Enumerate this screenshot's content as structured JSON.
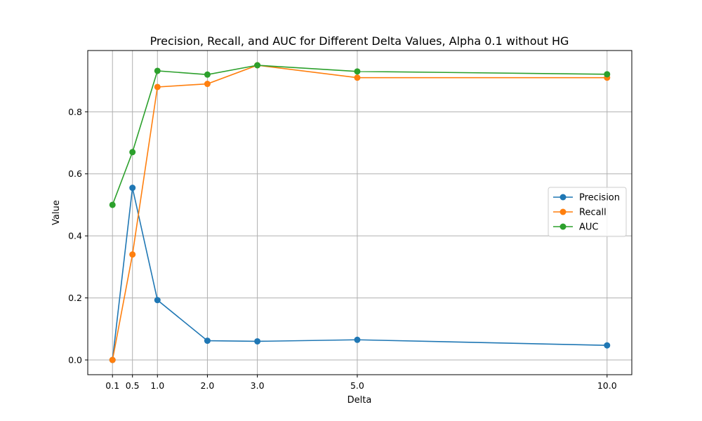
{
  "chart_data": {
    "type": "line",
    "title": "Precision, Recall, and AUC for Different Delta Values, Alpha 0.1 without HG",
    "xlabel": "Delta",
    "ylabel": "Value",
    "x": [
      0.1,
      0.5,
      1.0,
      2.0,
      3.0,
      5.0,
      10.0
    ],
    "x_tick_labels": [
      "0.1",
      "0.5",
      "1.0",
      "2.0",
      "3.0",
      "5.0",
      "10.0"
    ],
    "xlim": [
      -0.395,
      10.495
    ],
    "ylim": [
      -0.0475,
      0.9975
    ],
    "y_ticks": [
      0.0,
      0.2,
      0.4,
      0.6,
      0.8
    ],
    "y_tick_labels": [
      "0.0",
      "0.2",
      "0.4",
      "0.6",
      "0.8"
    ],
    "grid": true,
    "legend_position": "center-right",
    "series": [
      {
        "name": "Precision",
        "color": "#1f77b4",
        "values": [
          0.0,
          0.555,
          0.193,
          0.062,
          0.06,
          0.065,
          0.047
        ]
      },
      {
        "name": "Recall",
        "color": "#ff7f0e",
        "values": [
          0.0,
          0.34,
          0.88,
          0.89,
          0.95,
          0.91,
          0.91
        ]
      },
      {
        "name": "AUC",
        "color": "#2ca02c",
        "values": [
          0.5,
          0.67,
          0.932,
          0.92,
          0.95,
          0.93,
          0.921
        ]
      }
    ]
  }
}
